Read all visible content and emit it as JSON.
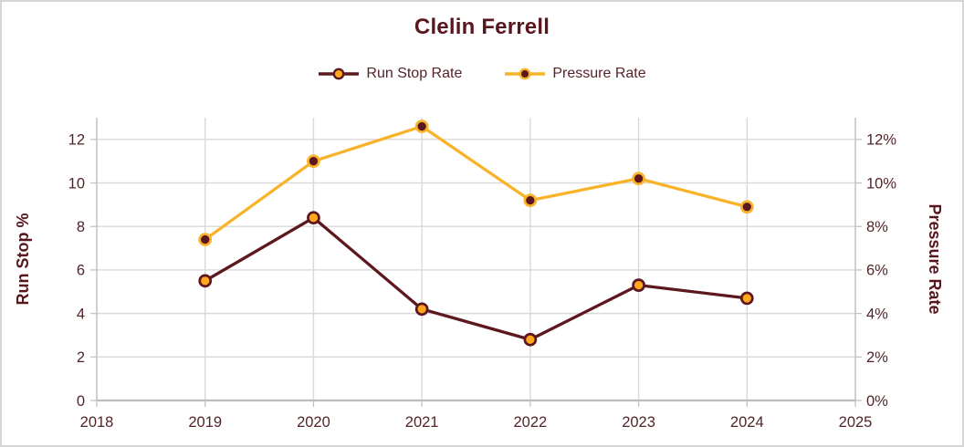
{
  "title": "Clelin Ferrell",
  "legend": [
    {
      "label": "Run Stop Rate",
      "line_color": "#5c181e",
      "marker_fill": "#ffa71e",
      "marker_stroke": "#5c181e"
    },
    {
      "label": "Pressure Rate",
      "line_color": "#f9b32b",
      "marker_fill": "#5c181e",
      "marker_stroke": "#f9b32b"
    }
  ],
  "chart_data": {
    "type": "line",
    "title": "Clelin Ferrell",
    "x": [
      2019,
      2020,
      2021,
      2022,
      2023,
      2024
    ],
    "series": [
      {
        "name": "Run Stop Rate",
        "axis": "left",
        "values": [
          5.5,
          8.4,
          4.2,
          2.8,
          5.3,
          4.7
        ],
        "line_color": "#5c181e",
        "marker_fill": "#ffa71e",
        "marker_stroke": "#5c181e"
      },
      {
        "name": "Pressure Rate",
        "axis": "right",
        "values": [
          7.4,
          11.0,
          12.6,
          9.2,
          10.2,
          8.9
        ],
        "line_color": "#f9b32b",
        "marker_fill": "#5c181e",
        "marker_stroke": "#f9b32b"
      }
    ],
    "x_axis": {
      "min": 2018,
      "max": 2025,
      "tick_labels": [
        "2018",
        "2019",
        "2020",
        "2021",
        "2022",
        "2023",
        "2024",
        "2025"
      ]
    },
    "left_axis": {
      "title": "Run Stop %",
      "min": 0,
      "max": 13,
      "tick_step": 2,
      "tick_labels": [
        "0",
        "2",
        "4",
        "6",
        "8",
        "10",
        "12"
      ]
    },
    "right_axis": {
      "title": "Pressure Rate",
      "min": 0,
      "max": 13,
      "tick_step": 2,
      "tick_labels": [
        "0%",
        "2%",
        "4%",
        "6%",
        "8%",
        "10%",
        "12%"
      ]
    },
    "grid": true,
    "legend_position": "top"
  },
  "colors": {
    "burgundy": "#5c181e",
    "gold": "#f9b32b",
    "marker_orange": "#ffa71e",
    "gridline": "#d9d9d9",
    "axis_line": "#c3c3c3",
    "bottom_axis_line": "#bdbdbd",
    "tick_text": "#512528",
    "axis_title_text": "#5a161d",
    "background": "#ffffff",
    "frame_border": "#d6d6d6"
  }
}
